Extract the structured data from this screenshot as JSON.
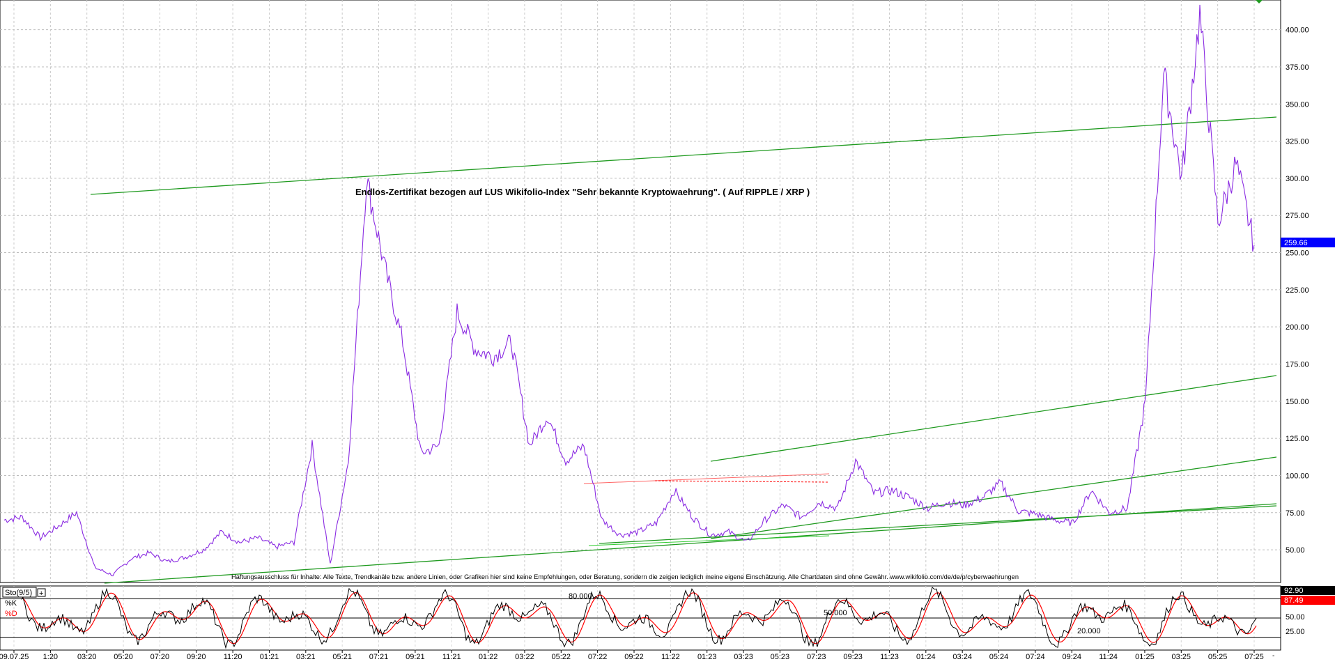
{
  "chart_data": [
    {
      "type": "line",
      "title": "Endlos-Zertifikat bezogen auf LUS Wikifolio-Index \"Sehr bekannte Kryptowaehrung\". ( Auf RIPPLE / XRP )",
      "ylim": [
        28,
        420
      ],
      "y_ticks": [
        "400.00",
        "375.00",
        "350.00",
        "325.00",
        "300.00",
        "275.00",
        "250.00",
        "225.00",
        "200.00",
        "175.00",
        "150.00",
        "125.00",
        "100.00",
        "75.00",
        "50.00"
      ],
      "x_ticks": [
        "09.07.25",
        "1:20",
        "03:20",
        "05:20",
        "07:20",
        "09:20",
        "11:20",
        "01:21",
        "03:21",
        "05:21",
        "07:21",
        "09:21",
        "11:21",
        "01:22",
        "03:22",
        "05:22",
        "07:22",
        "09:22",
        "11:22",
        "01:23",
        "03:23",
        "05:23",
        "07:23",
        "09:23",
        "11:23",
        "01:24",
        "03:24",
        "05:24",
        "07:24",
        "09:24",
        "11:24",
        "01:25",
        "03:25",
        "05:25",
        "07:25"
      ],
      "grid": true,
      "last_value_label": "259.66",
      "disclaimer": "Haftungsausschluss für Inhalte: Alle Texte, Trendkanäle bzw. andere Linien, oder Grafiken hier sind keine Empfehlungen, oder Beratung, sondern die zeigen lediglich meine eigene Einschätzung. Alle Chartdaten sind ohne Gewähr. www.wikifolio.com/de/de/p/cyberwaehrungen",
      "series": [
        {
          "color": "#8a2be2",
          "x": [
            0,
            0.5,
            1,
            1.5,
            2,
            2.5,
            3,
            3.5,
            4,
            4.5,
            5,
            5.5,
            6,
            6.5,
            7,
            7.5,
            8,
            8.5,
            9,
            9.5,
            10,
            10.5,
            11,
            11.5,
            12,
            12.5,
            13,
            13.5,
            14,
            14.5,
            15,
            15.5,
            16,
            16.5,
            17,
            17.5,
            18,
            18.5,
            19,
            19.5,
            20,
            20.5,
            21,
            21.5,
            22,
            22.5,
            23,
            23.5,
            24,
            24.5,
            25,
            25.5,
            26,
            26.5,
            27,
            27.5,
            28,
            28.5,
            29,
            29.5,
            30,
            30.5,
            31,
            31.5,
            32,
            32.5,
            33,
            33.5,
            34,
            34.5
          ],
          "y": [
            70,
            72,
            58,
            66,
            75,
            38,
            33,
            44,
            48,
            42,
            45,
            50,
            62,
            55,
            58,
            52,
            55,
            120,
            40,
            110,
            300,
            240,
            190,
            115,
            120,
            210,
            185,
            180,
            190,
            120,
            140,
            110,
            120,
            70,
            60,
            62,
            68,
            90,
            72,
            60,
            62,
            55,
            70,
            80,
            72,
            82,
            78,
            110,
            88,
            90,
            85,
            78,
            82,
            80,
            85,
            95,
            76,
            74,
            70,
            68,
            90,
            75,
            78,
            150,
            370,
            300,
            410,
            270,
            310,
            255
          ]
        }
      ]
    },
    {
      "type": "line",
      "title": "Sto(9/5)",
      "ylim": [
        0,
        100
      ],
      "y_ticks": [
        "50.00",
        "25.00"
      ],
      "levels": [
        "80.000",
        "50.000",
        "20.000"
      ],
      "series": [
        {
          "name": "%K",
          "color": "#000000",
          "last_value_label": "92.90"
        },
        {
          "name": "%D",
          "color": "#ff0000",
          "last_value_label": "87.49"
        }
      ]
    }
  ]
}
